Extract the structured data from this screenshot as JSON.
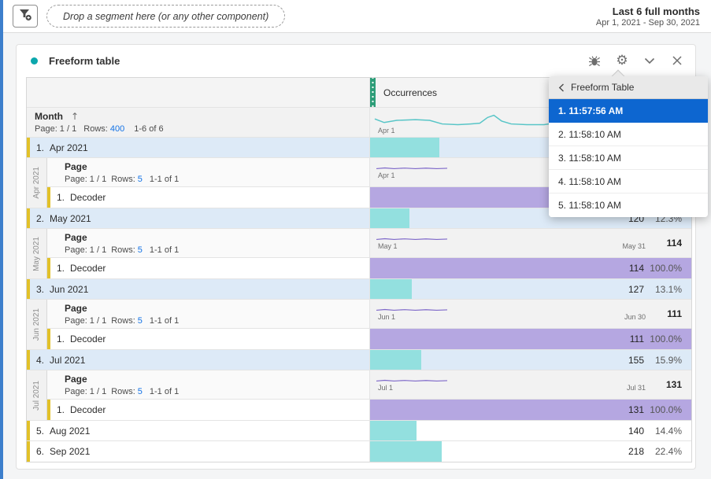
{
  "topbar": {
    "dropzone_text": "Drop a segment here (or any other component)",
    "date_range": {
      "title": "Last 6 full months",
      "detail": "Apr 1, 2021 - Sep 30, 2021"
    }
  },
  "panel": {
    "title": "Freeform table"
  },
  "table": {
    "value_column_header": "Occurrences",
    "dimension": {
      "name": "Month",
      "sort_arrow": "↑",
      "page_label": "Page: 1 / 1",
      "rows_label": "Rows:",
      "rows_value": "400",
      "range": "1-6 of 6"
    },
    "header_sparkline": {
      "start_label": "Apr 1"
    },
    "months": [
      {
        "num": "1.",
        "label": "Apr 2021",
        "value": "",
        "pct": "",
        "bar_pct": 21.5,
        "selected": true,
        "section": {
          "side_label": "Apr 2021",
          "dim_name": "Page",
          "page_label": "Page: 1 / 1",
          "rows_label": "Rows:",
          "rows_value": "5",
          "range": "1-1 of 1",
          "spark": {
            "start_label": "Apr 1",
            "end_label": "",
            "total": ""
          },
          "row": {
            "num": "1.",
            "label": "Decoder",
            "value": "",
            "pct": "",
            "bar_pct": 100
          }
        }
      },
      {
        "num": "2.",
        "label": "May 2021",
        "value": "120",
        "pct": "12.3%",
        "bar_pct": 12.3,
        "selected": true,
        "section": {
          "side_label": "May 2021",
          "dim_name": "Page",
          "page_label": "Page: 1 / 1",
          "rows_label": "Rows:",
          "rows_value": "5",
          "range": "1-1 of 1",
          "spark": {
            "start_label": "May 1",
            "end_label": "May 31",
            "total": "114"
          },
          "row": {
            "num": "1.",
            "label": "Decoder",
            "value": "114",
            "pct": "100.0%",
            "bar_pct": 100
          }
        }
      },
      {
        "num": "3.",
        "label": "Jun 2021",
        "value": "127",
        "pct": "13.1%",
        "bar_pct": 13.1,
        "selected": true,
        "section": {
          "side_label": "Jun 2021",
          "dim_name": "Page",
          "page_label": "Page: 1 / 1",
          "rows_label": "Rows:",
          "rows_value": "5",
          "range": "1-1 of 1",
          "spark": {
            "start_label": "Jun 1",
            "end_label": "Jun 30",
            "total": "111"
          },
          "row": {
            "num": "1.",
            "label": "Decoder",
            "value": "111",
            "pct": "100.0%",
            "bar_pct": 100
          }
        }
      },
      {
        "num": "4.",
        "label": "Jul 2021",
        "value": "155",
        "pct": "15.9%",
        "bar_pct": 15.9,
        "selected": true,
        "section": {
          "side_label": "Jul 2021",
          "dim_name": "Page",
          "page_label": "Page: 1 / 1",
          "rows_label": "Rows:",
          "rows_value": "5",
          "range": "1-1 of 1",
          "spark": {
            "start_label": "Jul 1",
            "end_label": "Jul 31",
            "total": "131"
          },
          "row": {
            "num": "1.",
            "label": "Decoder",
            "value": "131",
            "pct": "100.0%",
            "bar_pct": 100
          }
        }
      },
      {
        "num": "5.",
        "label": "Aug 2021",
        "value": "140",
        "pct": "14.4%",
        "bar_pct": 14.4,
        "selected": false
      },
      {
        "num": "6.",
        "label": "Sep 2021",
        "value": "218",
        "pct": "22.4%",
        "bar_pct": 22.4,
        "selected": false
      }
    ]
  },
  "dropdown": {
    "title": "Freeform Table",
    "items": [
      {
        "label": "1. 11:57:56 AM",
        "selected": true
      },
      {
        "label": "2. 11:58:10 AM",
        "selected": false
      },
      {
        "label": "3. 11:58:10 AM",
        "selected": false
      },
      {
        "label": "4. 11:58:10 AM",
        "selected": false
      },
      {
        "label": "5. 11:58:10 AM",
        "selected": false
      }
    ]
  },
  "colors": {
    "rail_blue": "#3d7fcc",
    "accent_dot": "#0ba7ad",
    "bar_teal": "#93e0df",
    "bar_purple": "#b5a7e1",
    "row_selected": "#ddeaf7",
    "gold": "#e2c128",
    "green_handle": "#2d9d78",
    "link_blue": "#1473e6",
    "dropdown_selected": "#0d66d0",
    "spark_teal": "#58c5c7",
    "spark_purple": "#7e68c9"
  }
}
